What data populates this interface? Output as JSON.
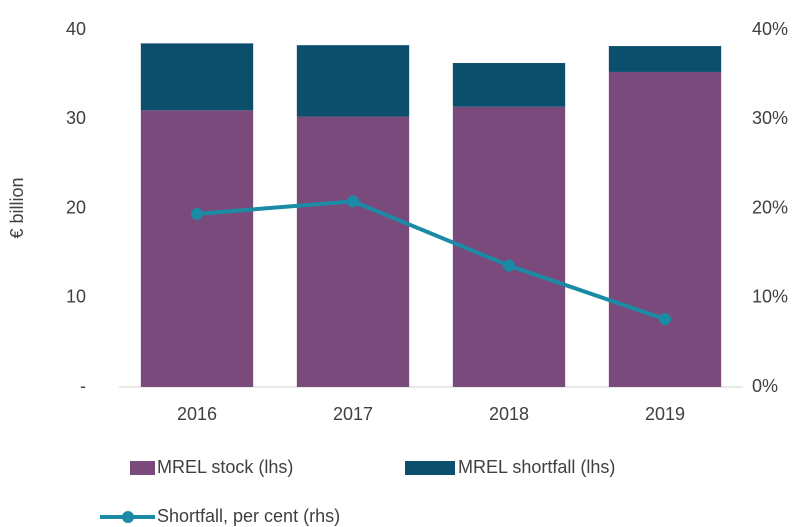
{
  "chart_data": {
    "type": "bar",
    "stacked": true,
    "y_label": "€ billion",
    "categories": [
      "2016",
      "2017",
      "2018",
      "2019"
    ],
    "series": [
      {
        "name": "MREL stock (lhs)",
        "color": "#7b4a7d",
        "type": "bar",
        "values": [
          31.0,
          30.3,
          31.4,
          35.3
        ]
      },
      {
        "name": "MREL shortfall (lhs)",
        "color": "#0b4f6c",
        "type": "bar",
        "values": [
          7.5,
          8.0,
          4.9,
          2.9
        ]
      },
      {
        "name": "Shortfall, per cent (rhs)",
        "color": "#1a8aa5",
        "type": "line",
        "axis": "y2",
        "values": [
          19.4,
          20.8,
          13.6,
          7.6
        ]
      }
    ],
    "ylim": [
      0,
      40
    ],
    "yticks": [
      {
        "value": 0,
        "label": "-"
      },
      10,
      20,
      30,
      40
    ],
    "y2lim": [
      0,
      40
    ],
    "y2ticks": [
      {
        "value": 0,
        "label": "0%"
      },
      {
        "value": 10,
        "label": "10%"
      },
      {
        "value": 20,
        "label": "20%"
      },
      {
        "value": 30,
        "label": "30%"
      },
      {
        "value": 40,
        "label": "40%"
      }
    ],
    "legend": "bottom"
  }
}
